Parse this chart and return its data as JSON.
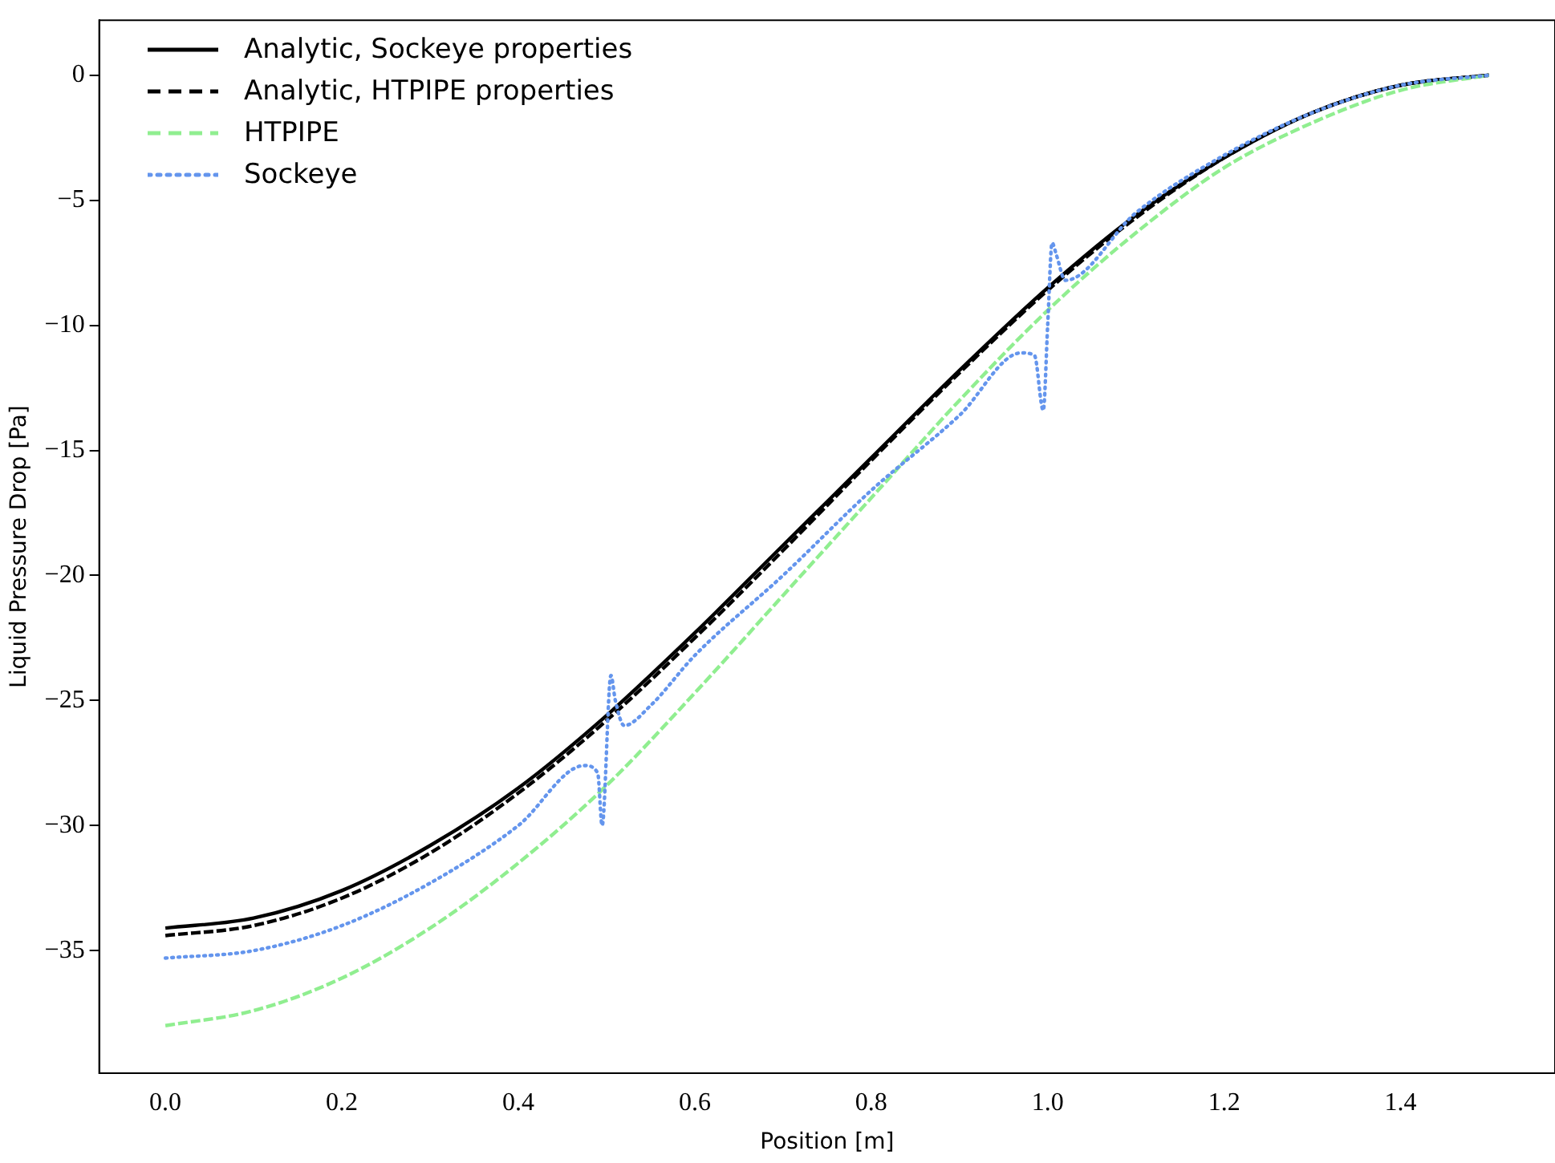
{
  "chart_data": {
    "type": "line",
    "xlabel": "Position [m]",
    "ylabel": "Liquid Pressure Drop [Pa]",
    "xlim": [
      -0.075,
      1.575
    ],
    "xticks": [
      {
        "value": 0,
        "label": "0.0"
      },
      {
        "value": 0.2,
        "label": "0.2"
      },
      {
        "value": 0.4,
        "label": "0.4"
      },
      {
        "value": 0.6,
        "label": "0.6"
      },
      {
        "value": 0.8,
        "label": "0.8"
      },
      {
        "value": 1,
        "label": "1.0"
      },
      {
        "value": 1.2,
        "label": "1.2"
      },
      {
        "value": 1.4,
        "label": "1.4"
      }
    ],
    "ylim": [
      -39.9,
      2.2
    ],
    "yticks": [
      {
        "value": -35,
        "label": "−35"
      },
      {
        "value": -30,
        "label": "−30"
      },
      {
        "value": -25,
        "label": "−25"
      },
      {
        "value": -20,
        "label": "−20"
      },
      {
        "value": -15,
        "label": "−15"
      },
      {
        "value": -10,
        "label": "−10"
      },
      {
        "value": -5,
        "label": "−5"
      },
      0
    ],
    "grid": false,
    "legend": "top left",
    "marker": "none",
    "series": [
      {
        "name": "Analytic, Sockeye properties",
        "color": "#000000",
        "line_style": "solid",
        "x": [
          0,
          0.1,
          0.2,
          0.3,
          0.4,
          0.5,
          0.6,
          0.7,
          0.8,
          0.9,
          1.0,
          1.1,
          1.2,
          1.3,
          1.4,
          1.5
        ],
        "values": [
          -34.1,
          -33.7,
          -32.6,
          -30.8,
          -28.5,
          -25.6,
          -22.3,
          -18.8,
          -15.3,
          -11.8,
          -8.5,
          -5.6,
          -3.3,
          -1.5,
          -0.4,
          0
        ]
      },
      {
        "name": "Analytic, HTPIPE properties",
        "color": "#000000",
        "line_style": "dashed",
        "x": [
          0,
          0.1,
          0.2,
          0.3,
          0.4,
          0.5,
          0.6,
          0.7,
          0.8,
          0.9,
          1.0,
          1.1,
          1.2,
          1.3,
          1.4,
          1.5
        ],
        "values": [
          -34.4,
          -34.0,
          -32.9,
          -31.1,
          -28.7,
          -25.8,
          -22.5,
          -19.0,
          -15.4,
          -11.9,
          -8.6,
          -5.7,
          -3.3,
          -1.5,
          -0.4,
          0
        ]
      },
      {
        "name": "HTPIPE",
        "color": "#90ee90",
        "line_style": "dashed",
        "x": [
          0,
          0.1,
          0.2,
          0.3,
          0.4,
          0.5,
          0.6,
          0.7,
          0.8,
          0.9,
          1.0,
          1.1,
          1.2,
          1.3,
          1.4,
          1.5
        ],
        "values": [
          -38,
          -37.4,
          -36.1,
          -34.1,
          -31.5,
          -28.4,
          -24.7,
          -20.8,
          -16.9,
          -13.0,
          -9.4,
          -6.3,
          -3.7,
          -1.9,
          -0.6,
          0
        ]
      },
      {
        "name": "Sockeye",
        "color": "#6495ed",
        "line_style": "dotted",
        "x": [
          0,
          0.1,
          0.2,
          0.3,
          0.4,
          0.475,
          0.49,
          0.495,
          0.505,
          0.51,
          0.52,
          0.55,
          0.6,
          0.7,
          0.8,
          0.9,
          0.97,
          0.985,
          0.995,
          1.0,
          1.005,
          1.01,
          1.02,
          1.1,
          1.2,
          1.3,
          1.4,
          1.5
        ],
        "values": [
          -35.3,
          -35.0,
          -34.0,
          -32.3,
          -30.0,
          -27.6,
          -27.9,
          -30.0,
          -24.0,
          -25.0,
          -26.0,
          -25.2,
          -23.2,
          -20.0,
          -16.6,
          -13.6,
          -11.1,
          -11.2,
          -13.4,
          -10.0,
          -6.7,
          -7.2,
          -8.2,
          -5.5,
          -3.2,
          -1.5,
          -0.4,
          0
        ]
      }
    ]
  }
}
